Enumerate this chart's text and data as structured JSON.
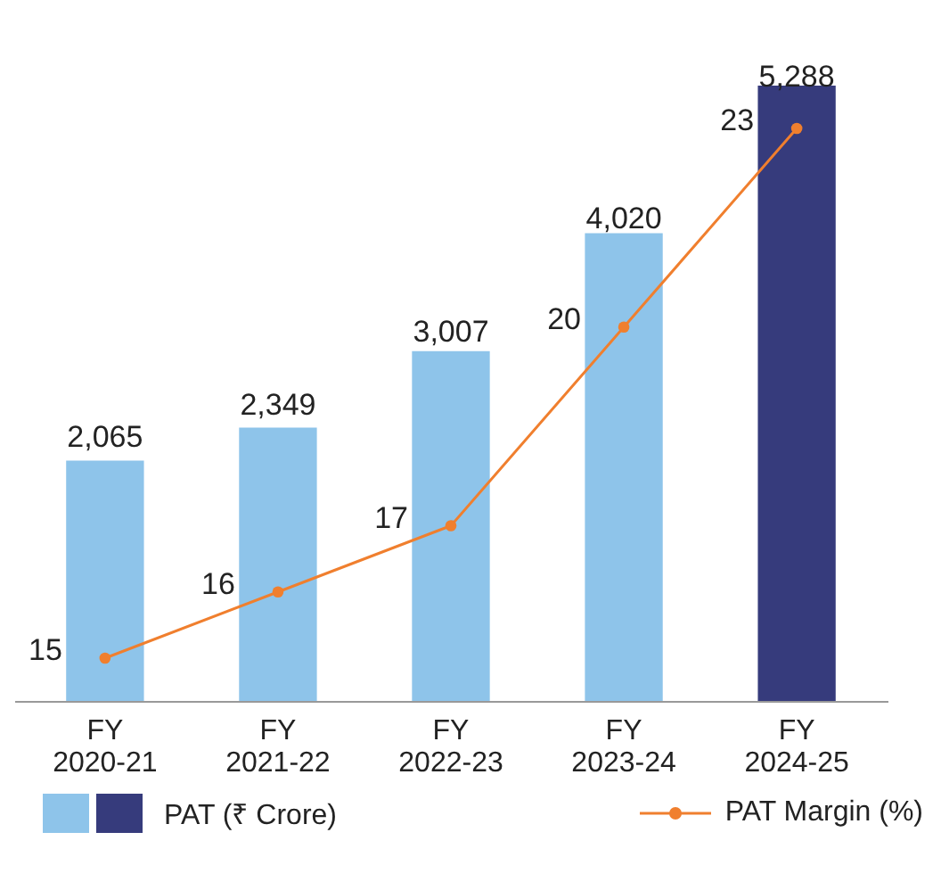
{
  "chart_data": {
    "type": "bar",
    "categories": [
      "FY 2020-21",
      "FY 2021-22",
      "FY 2022-23",
      "FY 2023-24",
      "FY 2024-25"
    ],
    "series": [
      {
        "name": "PAT (₹ Crore)",
        "colors": [
          "#8ec4ea",
          "#8ec4ea",
          "#8ec4ea",
          "#8ec4ea",
          "#363b7c"
        ],
        "values": [
          2065,
          2349,
          3007,
          4020,
          5288
        ],
        "value_labels": [
          "2,065",
          "2,349",
          "3,007",
          "4,020",
          "5,288"
        ]
      },
      {
        "name": "PAT Margin (%)",
        "type": "line",
        "axis": "y2",
        "color": "#f07f2e",
        "values": [
          15,
          16,
          17,
          20,
          23
        ],
        "value_labels": [
          "15",
          "16",
          "17",
          "20",
          "23"
        ]
      }
    ],
    "marker": "circle",
    "legend": "bottom",
    "tick_labels": "x"
  }
}
